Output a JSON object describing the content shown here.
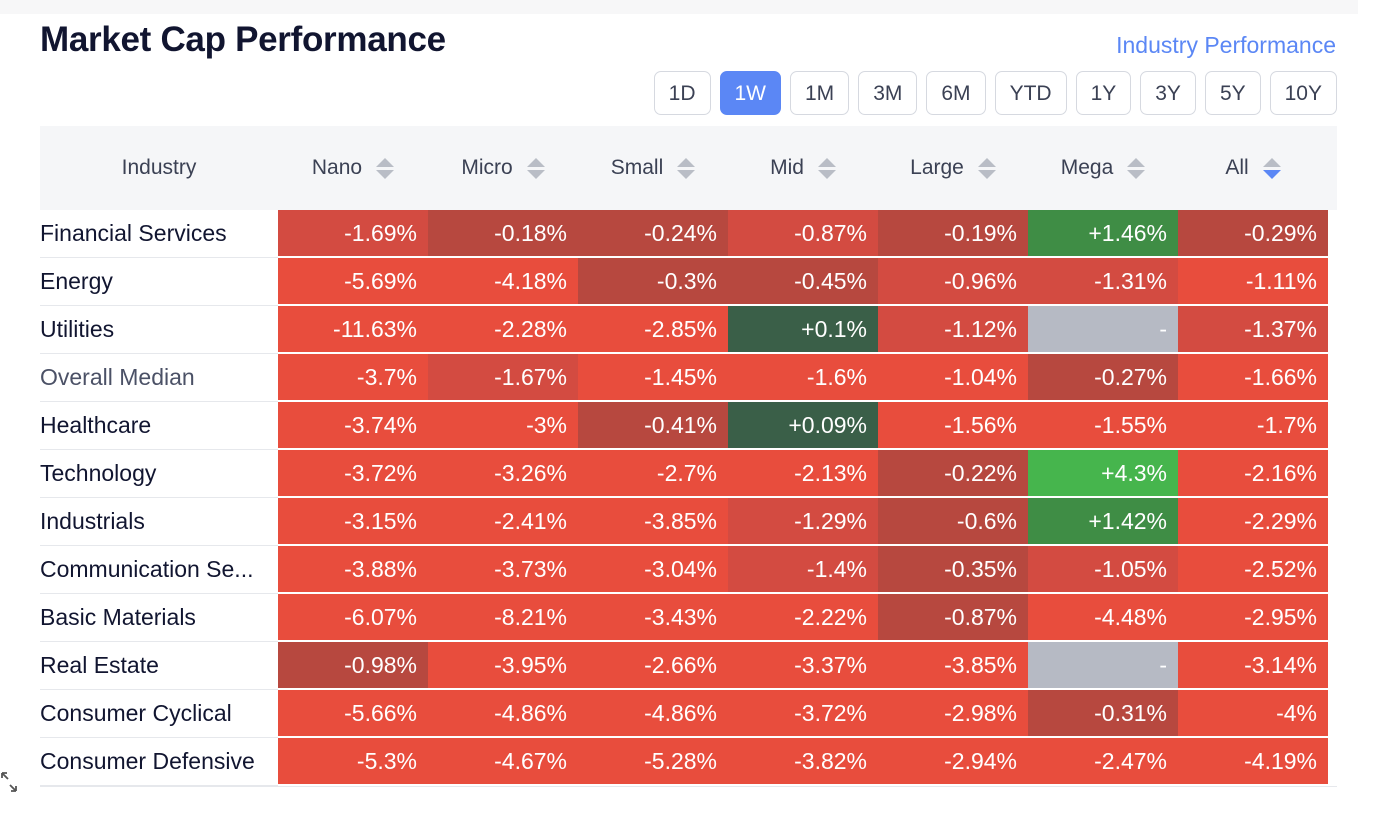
{
  "title": "Market Cap Performance",
  "industry_link": "Industry Performance",
  "periods": [
    {
      "label": "1D",
      "active": false
    },
    {
      "label": "1W",
      "active": true
    },
    {
      "label": "1M",
      "active": false
    },
    {
      "label": "3M",
      "active": false
    },
    {
      "label": "6M",
      "active": false
    },
    {
      "label": "YTD",
      "active": false
    },
    {
      "label": "1Y",
      "active": false
    },
    {
      "label": "3Y",
      "active": false
    },
    {
      "label": "5Y",
      "active": false
    },
    {
      "label": "10Y",
      "active": false
    }
  ],
  "columns": {
    "industry": "Industry",
    "caps": [
      "Nano",
      "Micro",
      "Small",
      "Mid",
      "Large",
      "Mega",
      "All"
    ],
    "sorted_column": "All",
    "sort_direction": "descending"
  },
  "colors": {
    "red": "#e84d3d",
    "red_dark": "#d34b41",
    "red_muted": "#b7483f",
    "green_dark": "#3a5f48",
    "green_mid": "#3f8d45",
    "green_bright": "#46b54d",
    "empty": "#b6bac4",
    "accent": "#5b87f5"
  },
  "rows": [
    {
      "name": "Financial Services",
      "cells": [
        {
          "text": "-1.69%",
          "tone": "red_dark"
        },
        {
          "text": "-0.18%",
          "tone": "red_muted"
        },
        {
          "text": "-0.24%",
          "tone": "red_muted"
        },
        {
          "text": "-0.87%",
          "tone": "red_dark"
        },
        {
          "text": "-0.19%",
          "tone": "red_muted"
        },
        {
          "text": "+1.46%",
          "tone": "green_mid"
        },
        {
          "text": "-0.29%",
          "tone": "red_muted"
        }
      ]
    },
    {
      "name": "Energy",
      "cells": [
        {
          "text": "-5.69%",
          "tone": "red"
        },
        {
          "text": "-4.18%",
          "tone": "red"
        },
        {
          "text": "-0.3%",
          "tone": "red_muted"
        },
        {
          "text": "-0.45%",
          "tone": "red_muted"
        },
        {
          "text": "-0.96%",
          "tone": "red_dark"
        },
        {
          "text": "-1.31%",
          "tone": "red_dark"
        },
        {
          "text": "-1.11%",
          "tone": "red"
        }
      ]
    },
    {
      "name": "Utilities",
      "cells": [
        {
          "text": "-11.63%",
          "tone": "red"
        },
        {
          "text": "-2.28%",
          "tone": "red"
        },
        {
          "text": "-2.85%",
          "tone": "red"
        },
        {
          "text": "+0.1%",
          "tone": "green_dark"
        },
        {
          "text": "-1.12%",
          "tone": "red_dark"
        },
        {
          "text": "-",
          "tone": "empty"
        },
        {
          "text": "-1.37%",
          "tone": "red_dark"
        }
      ]
    },
    {
      "name": "Overall Median",
      "median": true,
      "cells": [
        {
          "text": "-3.7%",
          "tone": "red"
        },
        {
          "text": "-1.67%",
          "tone": "red_dark"
        },
        {
          "text": "-1.45%",
          "tone": "red"
        },
        {
          "text": "-1.6%",
          "tone": "red"
        },
        {
          "text": "-1.04%",
          "tone": "red"
        },
        {
          "text": "-0.27%",
          "tone": "red_muted"
        },
        {
          "text": "-1.66%",
          "tone": "red"
        }
      ]
    },
    {
      "name": "Healthcare",
      "cells": [
        {
          "text": "-3.74%",
          "tone": "red"
        },
        {
          "text": "-3%",
          "tone": "red"
        },
        {
          "text": "-0.41%",
          "tone": "red_muted"
        },
        {
          "text": "+0.09%",
          "tone": "green_dark"
        },
        {
          "text": "-1.56%",
          "tone": "red"
        },
        {
          "text": "-1.55%",
          "tone": "red"
        },
        {
          "text": "-1.7%",
          "tone": "red"
        }
      ]
    },
    {
      "name": "Technology",
      "cells": [
        {
          "text": "-3.72%",
          "tone": "red"
        },
        {
          "text": "-3.26%",
          "tone": "red"
        },
        {
          "text": "-2.7%",
          "tone": "red"
        },
        {
          "text": "-2.13%",
          "tone": "red"
        },
        {
          "text": "-0.22%",
          "tone": "red_muted"
        },
        {
          "text": "+4.3%",
          "tone": "green_bright"
        },
        {
          "text": "-2.16%",
          "tone": "red"
        }
      ]
    },
    {
      "name": "Industrials",
      "cells": [
        {
          "text": "-3.15%",
          "tone": "red"
        },
        {
          "text": "-2.41%",
          "tone": "red"
        },
        {
          "text": "-3.85%",
          "tone": "red"
        },
        {
          "text": "-1.29%",
          "tone": "red_dark"
        },
        {
          "text": "-0.6%",
          "tone": "red_muted"
        },
        {
          "text": "+1.42%",
          "tone": "green_mid"
        },
        {
          "text": "-2.29%",
          "tone": "red"
        }
      ]
    },
    {
      "name": "Communication Se...",
      "cells": [
        {
          "text": "-3.88%",
          "tone": "red"
        },
        {
          "text": "-3.73%",
          "tone": "red"
        },
        {
          "text": "-3.04%",
          "tone": "red"
        },
        {
          "text": "-1.4%",
          "tone": "red_dark"
        },
        {
          "text": "-0.35%",
          "tone": "red_muted"
        },
        {
          "text": "-1.05%",
          "tone": "red_dark"
        },
        {
          "text": "-2.52%",
          "tone": "red"
        }
      ]
    },
    {
      "name": "Basic Materials",
      "cells": [
        {
          "text": "-6.07%",
          "tone": "red"
        },
        {
          "text": "-8.21%",
          "tone": "red"
        },
        {
          "text": "-3.43%",
          "tone": "red"
        },
        {
          "text": "-2.22%",
          "tone": "red"
        },
        {
          "text": "-0.87%",
          "tone": "red_muted"
        },
        {
          "text": "-4.48%",
          "tone": "red"
        },
        {
          "text": "-2.95%",
          "tone": "red"
        }
      ]
    },
    {
      "name": "Real Estate",
      "cells": [
        {
          "text": "-0.98%",
          "tone": "red_muted"
        },
        {
          "text": "-3.95%",
          "tone": "red"
        },
        {
          "text": "-2.66%",
          "tone": "red"
        },
        {
          "text": "-3.37%",
          "tone": "red"
        },
        {
          "text": "-3.85%",
          "tone": "red"
        },
        {
          "text": "-",
          "tone": "empty"
        },
        {
          "text": "-3.14%",
          "tone": "red"
        }
      ]
    },
    {
      "name": "Consumer Cyclical",
      "cells": [
        {
          "text": "-5.66%",
          "tone": "red"
        },
        {
          "text": "-4.86%",
          "tone": "red"
        },
        {
          "text": "-4.86%",
          "tone": "red"
        },
        {
          "text": "-3.72%",
          "tone": "red"
        },
        {
          "text": "-2.98%",
          "tone": "red"
        },
        {
          "text": "-0.31%",
          "tone": "red_muted"
        },
        {
          "text": "-4%",
          "tone": "red"
        }
      ]
    },
    {
      "name": "Consumer Defensive",
      "cells": [
        {
          "text": "-5.3%",
          "tone": "red"
        },
        {
          "text": "-4.67%",
          "tone": "red"
        },
        {
          "text": "-5.28%",
          "tone": "red"
        },
        {
          "text": "-3.82%",
          "tone": "red"
        },
        {
          "text": "-2.94%",
          "tone": "red"
        },
        {
          "text": "-2.47%",
          "tone": "red"
        },
        {
          "text": "-4.19%",
          "tone": "red"
        }
      ]
    }
  ]
}
